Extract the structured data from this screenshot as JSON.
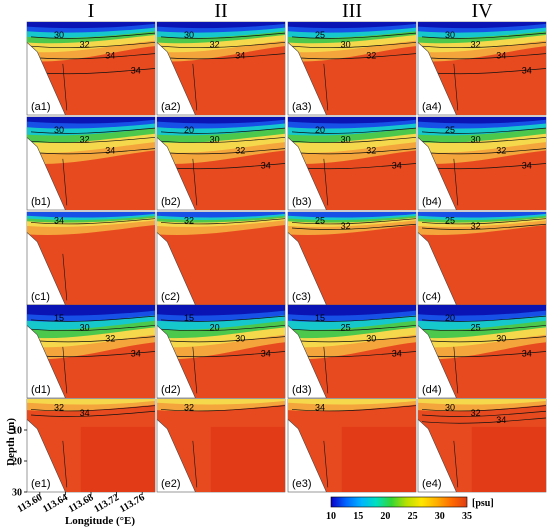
{
  "chart_data": {
    "type": "heatmap",
    "column_headers": [
      "I",
      "II",
      "III",
      "IV"
    ],
    "rows": [
      {
        "panels": [
          "(a1)",
          "(a2)",
          "(a3)",
          "(a4)"
        ],
        "contours": [
          [
            "30",
            "32",
            "34",
            "34"
          ],
          [
            "30",
            "32",
            "34"
          ],
          [
            "25",
            "30",
            "32"
          ],
          [
            "30",
            "32",
            "34",
            "34"
          ]
        ]
      },
      {
        "panels": [
          "(b1)",
          "(b2)",
          "(b3)",
          "(b4)"
        ],
        "contours": [
          [
            "30",
            "32",
            "34"
          ],
          [
            "20",
            "30",
            "32",
            "34"
          ],
          [
            "20",
            "30",
            "32",
            "34"
          ],
          [
            "25",
            "30",
            "32",
            "34"
          ]
        ]
      },
      {
        "panels": [
          "(c1)",
          "(c2)",
          "(c3)",
          "(c4)"
        ],
        "contours": [
          [
            "34"
          ],
          [
            "32"
          ],
          [
            "25",
            "32"
          ],
          [
            "25",
            "32"
          ]
        ]
      },
      {
        "panels": [
          "(d1)",
          "(d2)",
          "(d3)",
          "(d4)"
        ],
        "contours": [
          [
            "15",
            "30",
            "32",
            "34"
          ],
          [
            "15",
            "20",
            "30",
            "34"
          ],
          [
            "15",
            "25",
            "30",
            "34"
          ],
          [
            "20",
            "25",
            "30",
            "34"
          ]
        ]
      },
      {
        "panels": [
          "(e1)",
          "(e2)",
          "(e3)",
          "(e4)"
        ],
        "contours": [
          [
            "32",
            "34"
          ],
          [
            "32"
          ],
          [
            "34"
          ],
          [
            "30",
            "32",
            "34"
          ]
        ]
      }
    ],
    "ylabel": "Depth (m)",
    "yticks": [
      "10",
      "20",
      "30"
    ],
    "ylim": [
      0,
      30
    ],
    "xlabel": "Longitude (°E)",
    "xticks": [
      "113.60",
      "113.64",
      "113.68",
      "113.72",
      "113.76"
    ],
    "xlim": [
      113.58,
      113.78
    ],
    "colorbar": {
      "ticks": [
        "10",
        "15",
        "20",
        "25",
        "30",
        "35"
      ],
      "unit": "[psu]",
      "range": [
        10,
        35
      ],
      "colors": [
        "#0a00c8",
        "#0066ff",
        "#00b4ff",
        "#00e0c0",
        "#33d633",
        "#b8e000",
        "#ffe600",
        "#ffae00",
        "#ff6a00",
        "#e03c14"
      ]
    },
    "colors": {
      "salty": "#e84a1f",
      "deep": "#e23b17",
      "mid": "#f07a28",
      "orange": "#f4a53b",
      "yellow": "#f6d84c",
      "green": "#4cc84c",
      "cyan": "#16c8cc",
      "blue": "#1650e6",
      "navy": "#0a14b4"
    }
  }
}
